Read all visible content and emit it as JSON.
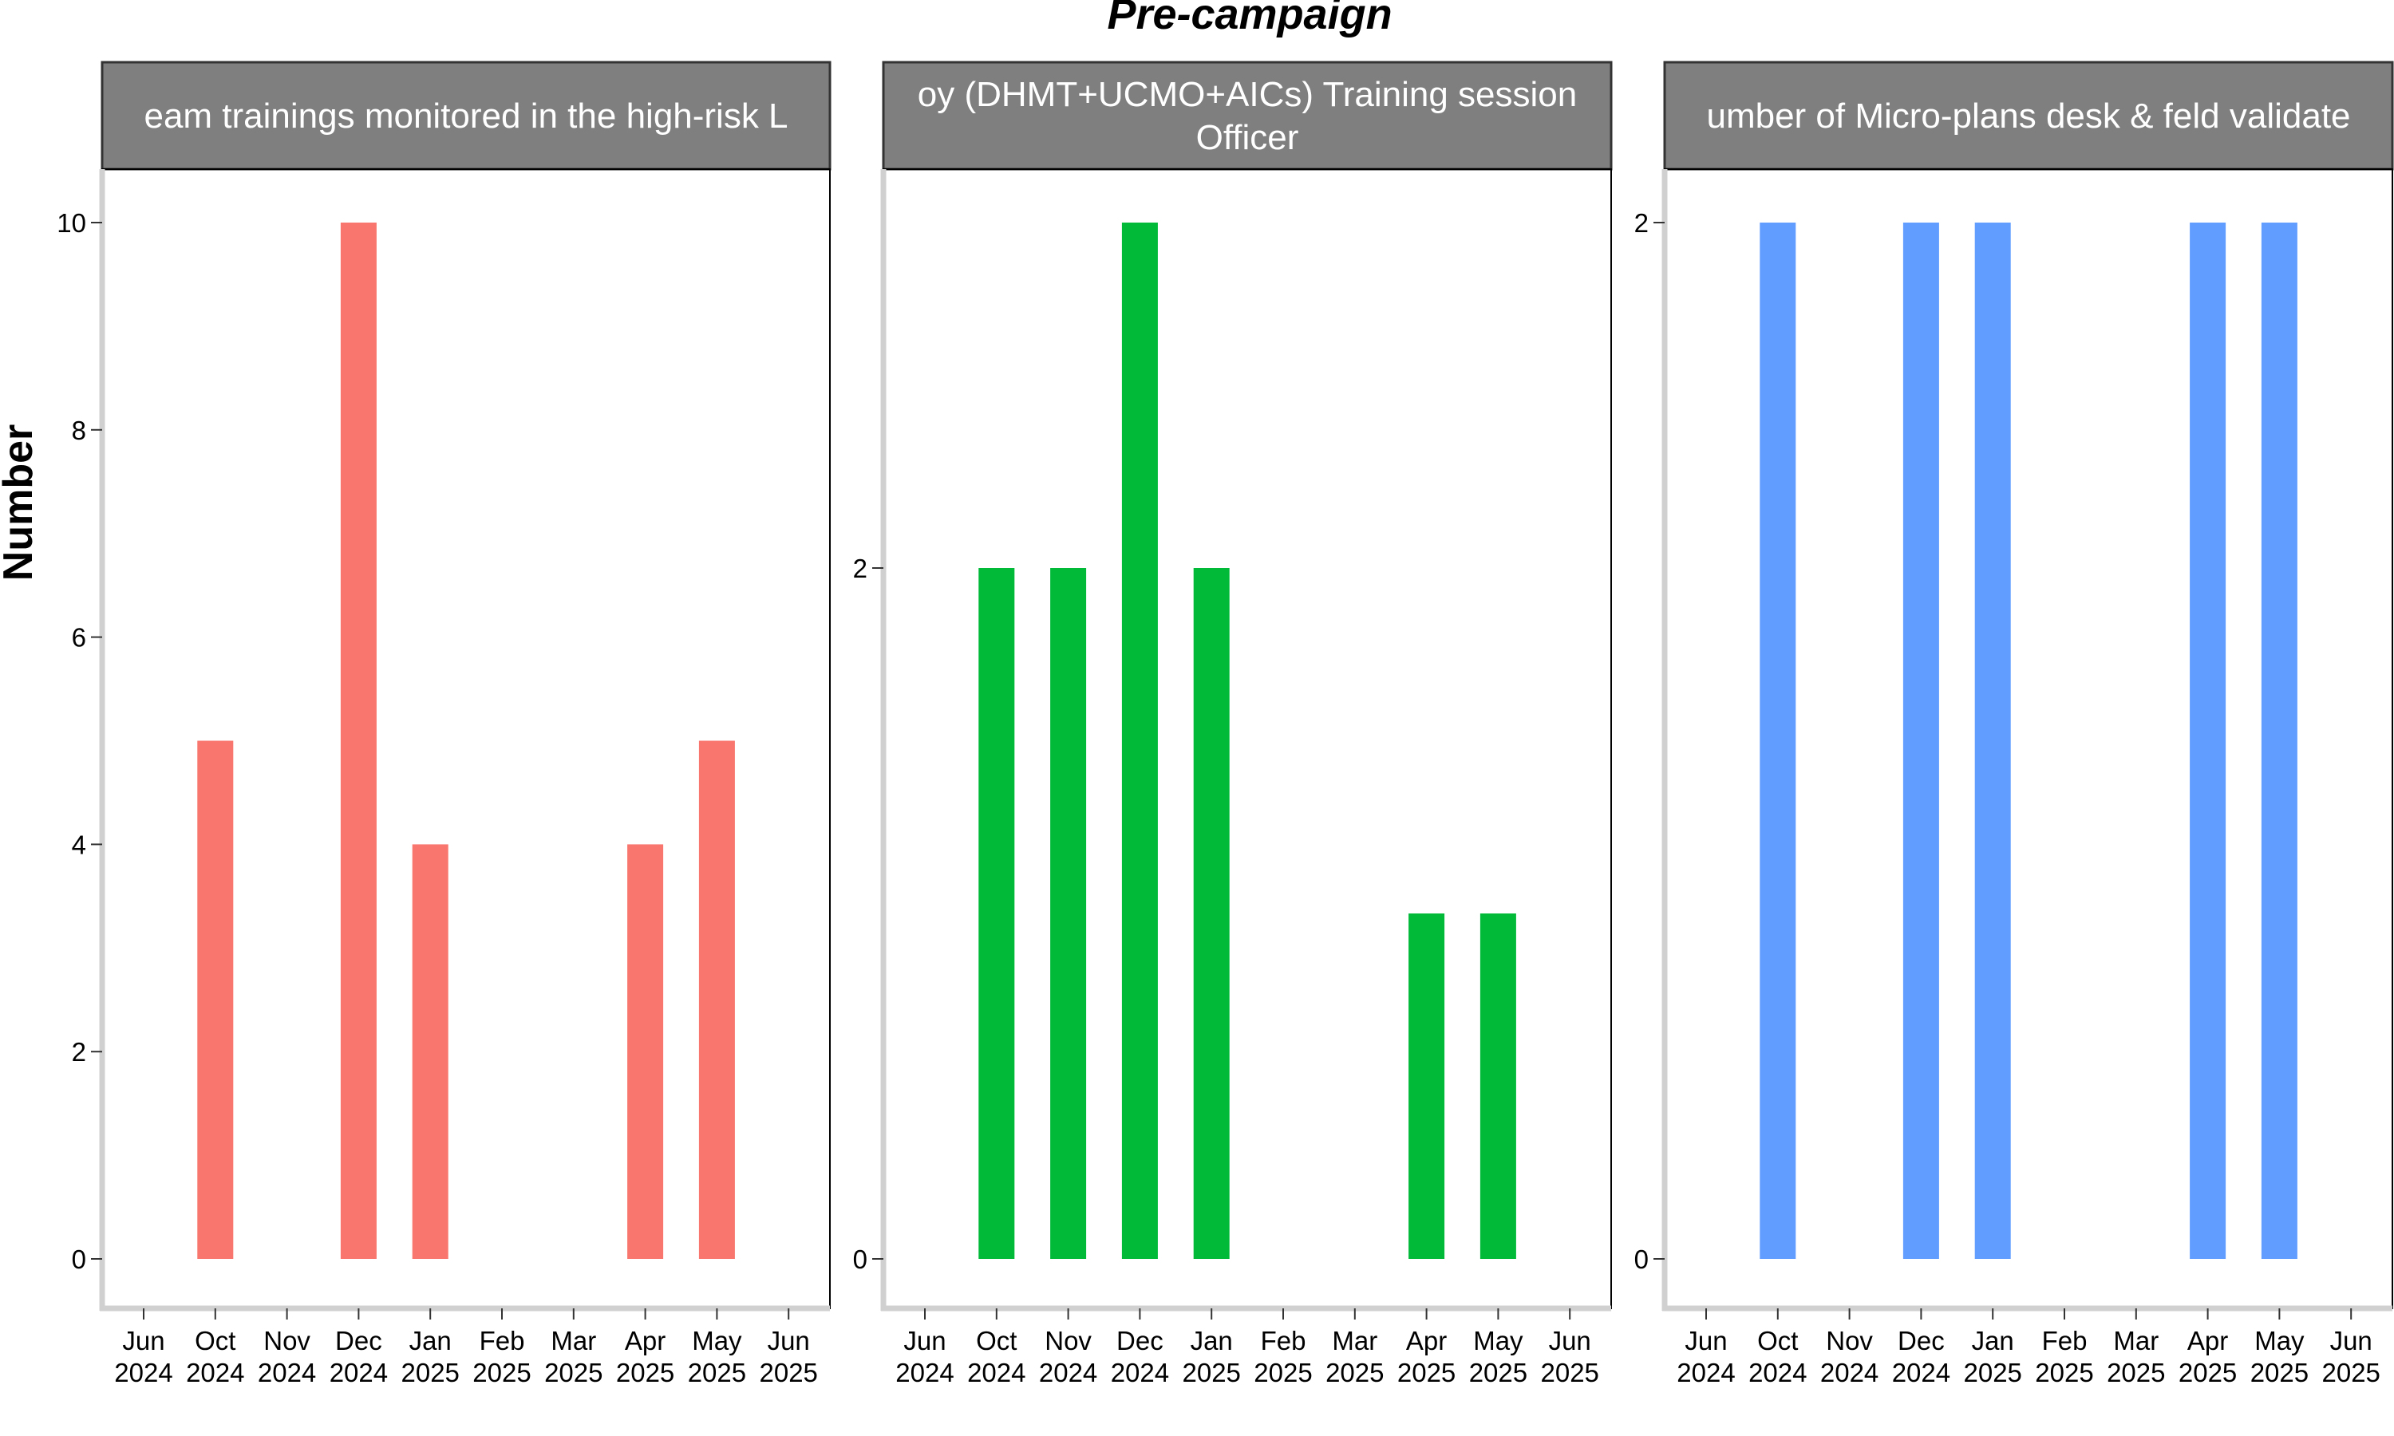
{
  "chart_data": {
    "type": "bar",
    "title": "Pre-campaign",
    "ylabel": "Number",
    "x_ticks": [
      {
        "month": "Jun",
        "year": "2024"
      },
      {
        "month": "Oct",
        "year": "2024"
      },
      {
        "month": "Nov",
        "year": "2024"
      },
      {
        "month": "Dec",
        "year": "2024"
      },
      {
        "month": "Jan",
        "year": "2025"
      },
      {
        "month": "Feb",
        "year": "2025"
      },
      {
        "month": "Mar",
        "year": "2025"
      },
      {
        "month": "Apr",
        "year": "2025"
      },
      {
        "month": "May",
        "year": "2025"
      },
      {
        "month": "Jun",
        "year": "2025"
      }
    ],
    "panels": [
      {
        "strip_lines": [
          "eam trainings monitored in the high-risk L"
        ],
        "color": "#F8766D",
        "ylim": [
          -0.5,
          10.5
        ],
        "y_ticks": [
          0,
          2,
          4,
          6,
          8,
          10
        ],
        "bars": [
          {
            "x": "Oct 2024",
            "value": 5
          },
          {
            "x": "Dec 2024",
            "value": 10
          },
          {
            "x": "Jan 2025",
            "value": 4
          },
          {
            "x": "Apr 2025",
            "value": 4
          },
          {
            "x": "May 2025",
            "value": 5
          }
        ]
      },
      {
        "strip_lines": [
          "oy (DHMT+UCMO+AICs) Training session",
          "Officer"
        ],
        "color": "#00BA38",
        "ylim": [
          -0.15,
          3.15
        ],
        "y_ticks": [
          0,
          2
        ],
        "bars": [
          {
            "x": "Oct 2024",
            "value": 2
          },
          {
            "x": "Nov 2024",
            "value": 2
          },
          {
            "x": "Dec 2024",
            "value": 3
          },
          {
            "x": "Jan 2025",
            "value": 2
          },
          {
            "x": "Apr 2025",
            "value": 1
          },
          {
            "x": "May 2025",
            "value": 1
          }
        ]
      },
      {
        "strip_lines": [
          "umber of Micro-plans desk & feld validate"
        ],
        "color": "#619CFF",
        "ylim": [
          -0.1,
          2.1
        ],
        "y_ticks": [
          0,
          2
        ],
        "bars": [
          {
            "x": "Oct 2024",
            "value": 2
          },
          {
            "x": "Dec 2024",
            "value": 2
          },
          {
            "x": "Jan 2025",
            "value": 2
          },
          {
            "x": "Apr 2025",
            "value": 2
          },
          {
            "x": "May 2025",
            "value": 2
          }
        ]
      }
    ],
    "grid": false,
    "legend": "none"
  }
}
